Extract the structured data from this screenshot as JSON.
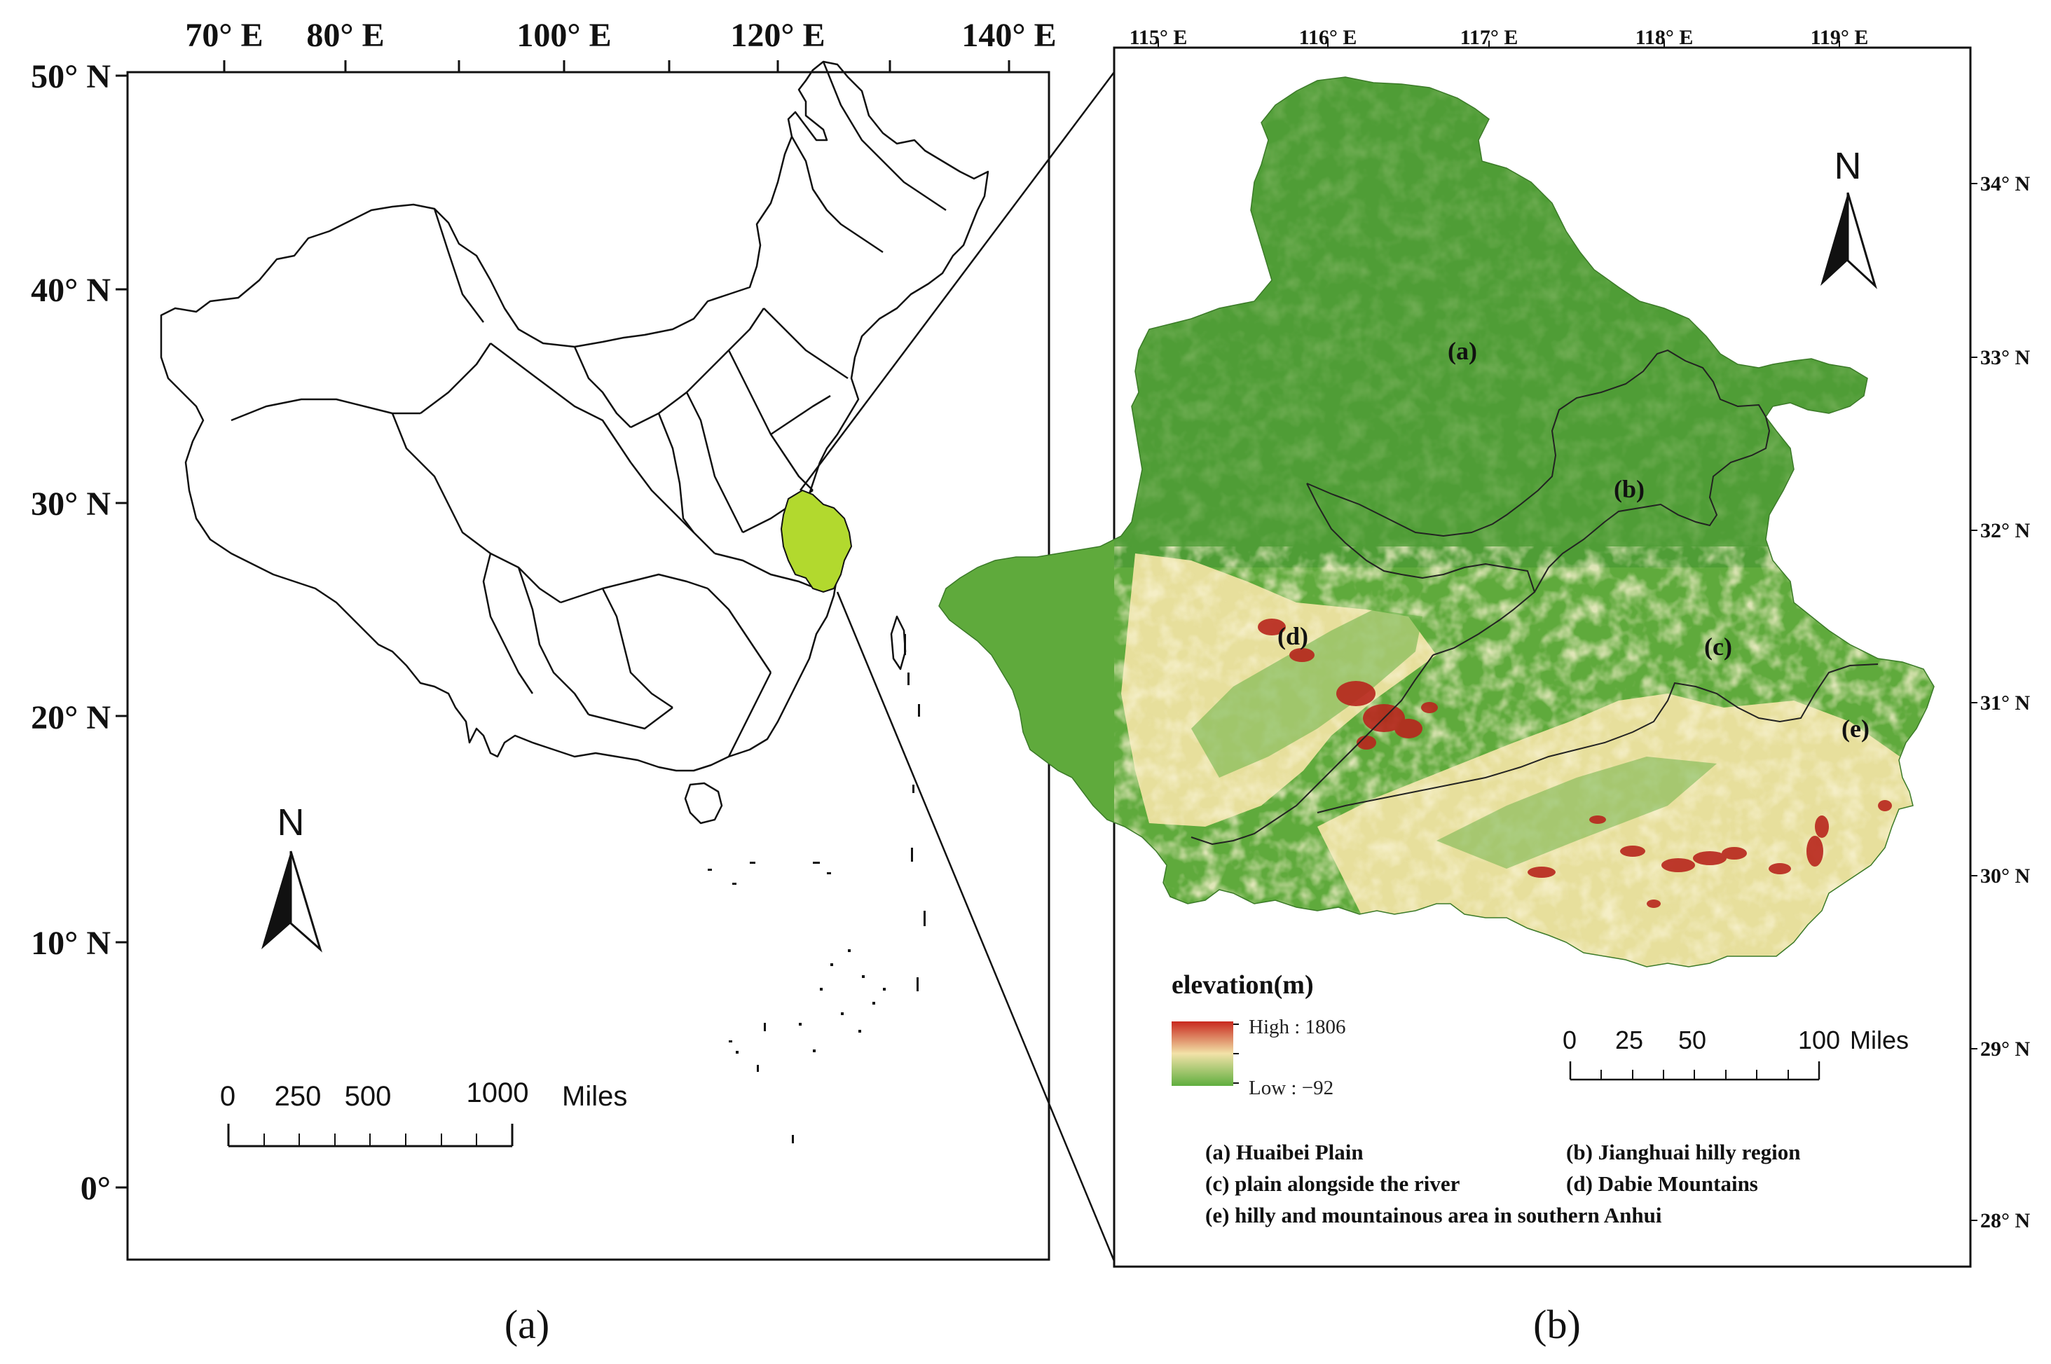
{
  "panel_a": {
    "lon_ticks": [
      {
        "label": "70° E"
      },
      {
        "label": "80° E"
      },
      {
        "label": "100° E"
      },
      {
        "label": "120° E"
      },
      {
        "label": "140° E"
      }
    ],
    "lat_ticks": [
      {
        "label": "50° N"
      },
      {
        "label": "40° N"
      },
      {
        "label": "30° N"
      },
      {
        "label": "20° N"
      },
      {
        "label": "10° N"
      },
      {
        "label": "0°"
      }
    ],
    "north_label": "N",
    "scale_bar": {
      "labels": [
        "0",
        "250",
        "500",
        "1000"
      ],
      "unit": "Miles"
    },
    "highlight_color": "#b2d92e",
    "caption": "(a)"
  },
  "panel_b": {
    "lon_ticks": [
      {
        "label": "115° E"
      },
      {
        "label": "116° E"
      },
      {
        "label": "117° E"
      },
      {
        "label": "118° E"
      },
      {
        "label": "119° E"
      }
    ],
    "lat_ticks": [
      {
        "label": "34° N"
      },
      {
        "label": "33° N"
      },
      {
        "label": "32° N"
      },
      {
        "label": "31° N"
      },
      {
        "label": "30° N"
      },
      {
        "label": "29° N"
      },
      {
        "label": "28° N"
      }
    ],
    "north_label": "N",
    "region_labels": [
      "(a)",
      "(b)",
      "(c)",
      "(d)",
      "(e)"
    ],
    "legend": {
      "title": "elevation(m)",
      "high_label": "High : 1806",
      "low_label": "Low :  −92",
      "colors": {
        "high": "#c8281e",
        "mid": "#f2e2a8",
        "low": "#5fae3e"
      }
    },
    "scale_bar": {
      "labels": [
        "0",
        "25",
        "50",
        "100"
      ],
      "unit": "Miles"
    },
    "regions_legend": [
      "(a) Huaibei Plain",
      "(b) Jianghuai hilly region",
      "(c) plain alongside the river",
      "(d) Dabie Mountains",
      "(e) hilly and mountainous area in southern Anhui"
    ],
    "colors": {
      "lowland": "#4f9d36",
      "plain": "#5faa3c",
      "hill": "#e7df9c",
      "peak": "#b8261d"
    },
    "caption": "(b)"
  }
}
